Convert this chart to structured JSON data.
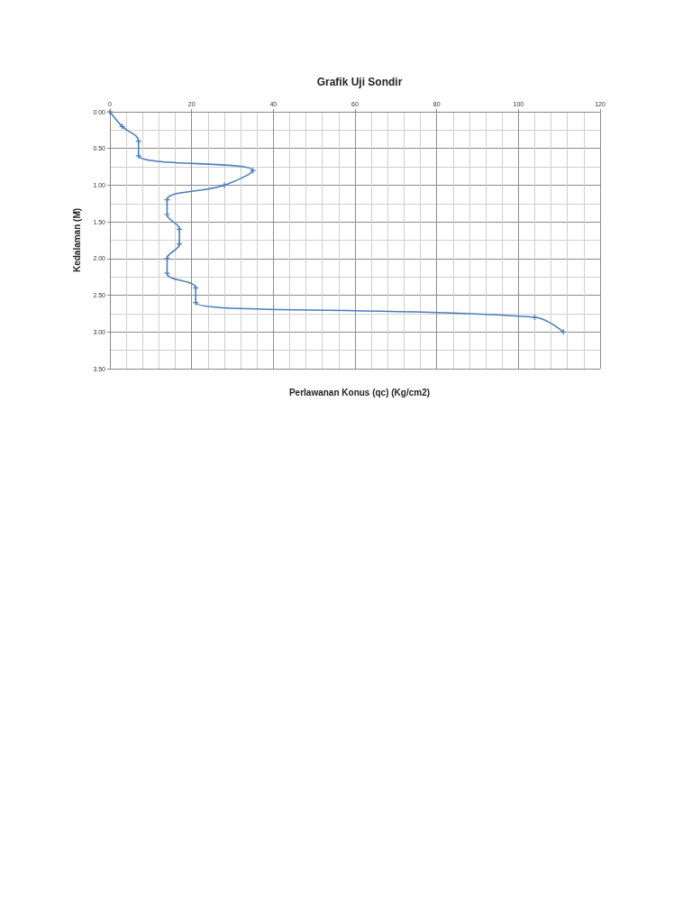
{
  "chart_data": {
    "type": "line",
    "title": "Grafik Uji Sondir",
    "xlabel": "Perlawanan Konus (qc) (Kg/cm2)",
    "ylabel": "Kedalaman (M)",
    "x": [
      0,
      3,
      7,
      7,
      35,
      28,
      14,
      14,
      17,
      17,
      14,
      14,
      21,
      21,
      104,
      111
    ],
    "series": [
      {
        "color": "#4a7ebb",
        "values": [
          0,
          0.2,
          0.4,
          0.6,
          0.8,
          1.0,
          1.2,
          1.4,
          1.6,
          1.8,
          2.0,
          2.2,
          2.4,
          2.6,
          2.8,
          3.0
        ]
      }
    ],
    "xlim": [
      0,
      120
    ],
    "xticks": [
      0,
      20,
      40,
      60,
      80,
      100,
      120
    ],
    "ylim": [
      3.5,
      0
    ],
    "yticks": [
      {
        "value": 0,
        "label": "0.00"
      },
      {
        "value": 0.5,
        "label": "0.50"
      },
      {
        "value": 1,
        "label": "1.00"
      },
      {
        "value": 1.5,
        "label": "1.50"
      },
      {
        "value": 2,
        "label": "2.00"
      },
      {
        "value": 2.5,
        "label": "2.50"
      },
      {
        "value": 3,
        "label": "3.00"
      },
      {
        "value": 3.5,
        "label": "3.50"
      }
    ],
    "grid": true,
    "marker": "cross",
    "line_style": "solid"
  }
}
